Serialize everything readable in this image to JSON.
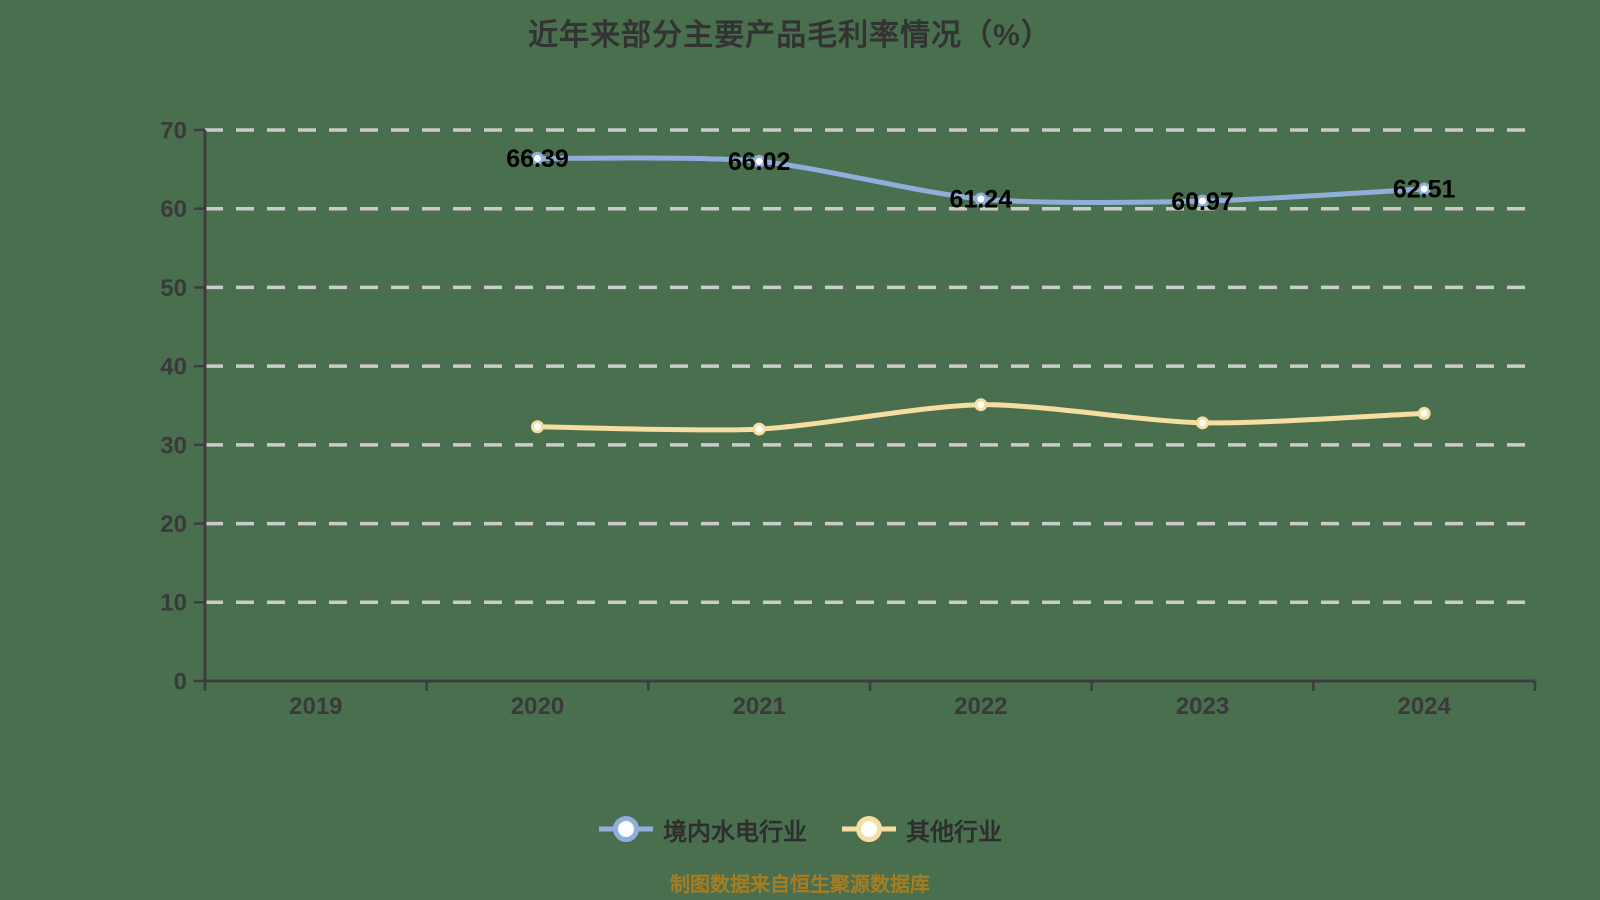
{
  "title": "近年来部分主要产品毛利率情况（%）",
  "footer": {
    "caption": "制图数据来自恒生聚源数据库"
  },
  "colors": {
    "background": "#4A6F4E",
    "grid": "#CBCBCB",
    "axis": "#3D3D3D",
    "tick_label": "#3A3A3A",
    "title": "#333333",
    "data_label": "#000000",
    "caption": "#A87D1F",
    "legend_text": "#2E2E2E",
    "marker_fill": "#FFFFFF"
  },
  "chart_data": {
    "type": "line",
    "title": "近年来部分主要产品毛利率情况（%）",
    "categories": [
      "2019",
      "2020",
      "2021",
      "2022",
      "2023",
      "2024"
    ],
    "series": [
      {
        "name": "境内水电行业",
        "color": "#8FAEDC",
        "values": [
          null,
          66.39,
          66.02,
          61.24,
          60.97,
          62.51
        ],
        "show_labels": true
      },
      {
        "name": "其他行业",
        "color": "#F6DEA2",
        "values": [
          null,
          32.3,
          32.0,
          35.1,
          32.8,
          34.0
        ],
        "show_labels": false
      }
    ],
    "ylim": [
      0,
      70
    ],
    "ytick_step": 10,
    "grid": "horizontal-dashed",
    "legend_position": "bottom",
    "xlabel": "",
    "ylabel": ""
  }
}
